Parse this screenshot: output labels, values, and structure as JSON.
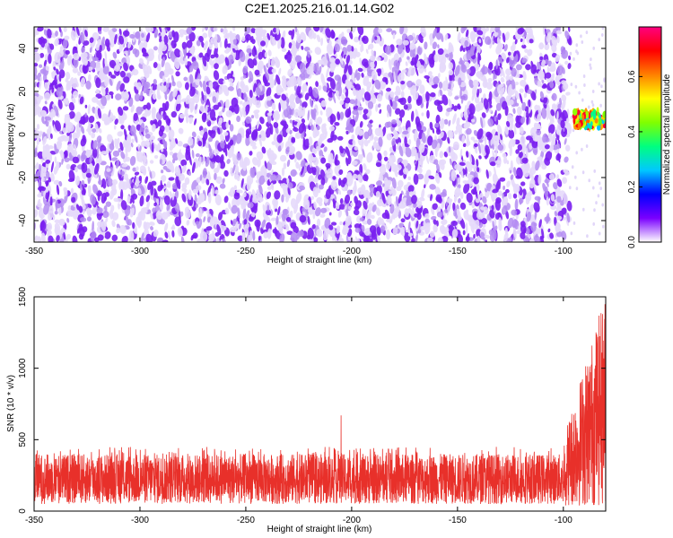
{
  "title": "C2E1.2025.216.01.14.G02",
  "colors": {
    "snr_line": "#e8302a",
    "text": "#000000",
    "colormap": [
      "#ffffff",
      "#7a00ff",
      "#0000ff",
      "#00c8ff",
      "#00ff80",
      "#80ff00",
      "#ffff00",
      "#ff8000",
      "#ff0000",
      "#ff0080"
    ]
  },
  "chart_data": [
    {
      "type": "heatmap",
      "xlabel": "Height of straight line (km)",
      "ylabel": "Frequency (Hz)",
      "xlim": [
        -350,
        -80
      ],
      "ylim": [
        -50,
        50
      ],
      "xticks": [
        -350,
        -300,
        -250,
        -200,
        -150,
        -100
      ],
      "xtick_labels": [
        "-350",
        "-300",
        "-250",
        "-200",
        "-150",
        "-100"
      ],
      "yticks": [
        -40,
        -20,
        0,
        20,
        40
      ],
      "ytick_labels": [
        "-40",
        "-20",
        "0",
        "20",
        "40"
      ],
      "noise_floor_amplitude": 0.05,
      "data_coverage_end_x": -97,
      "signal_band": {
        "x_start": -97,
        "x_end": -80,
        "frequency_center": 7,
        "frequency_halfwidth": 4,
        "peak_amplitude": 0.75
      },
      "colorbar": {
        "label": "Normalized spectral amplitude",
        "range": [
          0,
          0.78
        ],
        "ticks": [
          0.0,
          0.2,
          0.4,
          0.6
        ],
        "tick_labels": [
          "0.0",
          "0.2",
          "0.4",
          "0.6"
        ]
      }
    },
    {
      "type": "line",
      "xlabel": "Height of straight line (km)",
      "ylabel": "SNR (10 * v/v)",
      "xlim": [
        -350,
        -80
      ],
      "ylim": [
        0,
        1500
      ],
      "xticks": [
        -350,
        -300,
        -250,
        -200,
        -150,
        -100
      ],
      "xtick_labels": [
        "-350",
        "-300",
        "-250",
        "-200",
        "-150",
        "-100"
      ],
      "yticks": [
        0,
        500,
        1000,
        1500
      ],
      "ytick_labels": [
        "0",
        "500",
        "1000",
        "1500"
      ],
      "baseline_range": [
        50,
        400
      ],
      "typical_max": 450,
      "spike": {
        "x": -205,
        "y": 670
      },
      "burst": {
        "x_start": -100,
        "x_end": -80,
        "max": 1500
      }
    }
  ]
}
